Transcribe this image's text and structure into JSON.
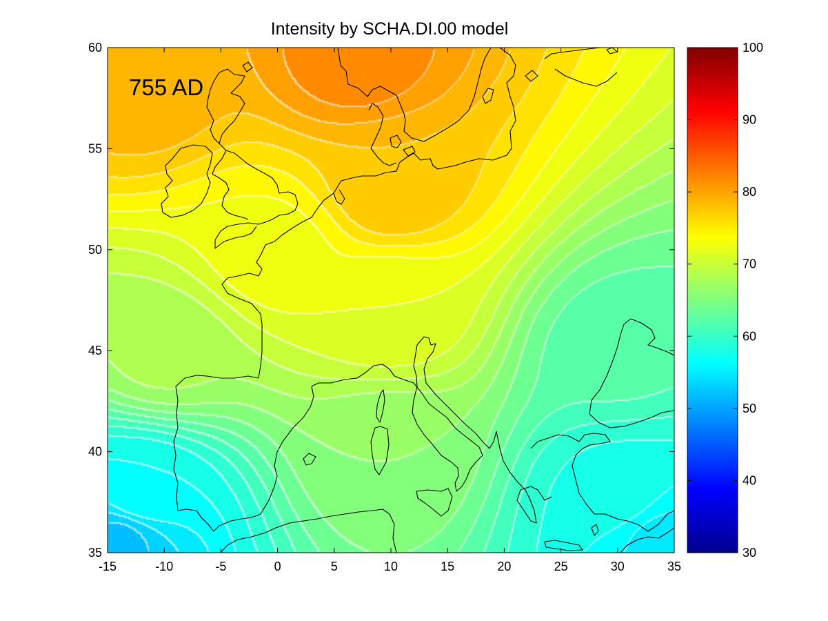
{
  "chart_data": {
    "type": "heatmap",
    "title": "Intensity by SCHA.DI.00 model",
    "annotation": "755 AD",
    "xlabel": "",
    "ylabel": "",
    "xlim": [
      -15,
      35
    ],
    "ylim": [
      35,
      60
    ],
    "x_ticks": [
      "-15",
      "-10",
      "-5",
      "0",
      "5",
      "10",
      "15",
      "20",
      "25",
      "30",
      "35"
    ],
    "y_ticks": [
      "35",
      "40",
      "45",
      "50",
      "55",
      "60"
    ],
    "colorbar": {
      "range": [
        30,
        100
      ],
      "ticks": [
        "30",
        "40",
        "50",
        "60",
        "70",
        "80",
        "90",
        "100"
      ],
      "colormap": "jet"
    },
    "field_samples": [
      {
        "lon": 7,
        "lat": 59.5,
        "value": 82
      },
      {
        "lon": -12,
        "lat": 58,
        "value": 79
      },
      {
        "lon": 10,
        "lat": 53,
        "value": 78
      },
      {
        "lon": 0,
        "lat": 50,
        "value": 73
      },
      {
        "lon": 10,
        "lat": 47,
        "value": 72
      },
      {
        "lon": -10,
        "lat": 45,
        "value": 68
      },
      {
        "lon": 10,
        "lat": 40,
        "value": 66
      },
      {
        "lon": 30,
        "lat": 45,
        "value": 62
      },
      {
        "lon": 30,
        "lat": 38,
        "value": 58
      },
      {
        "lon": -12,
        "lat": 38,
        "value": 57
      },
      {
        "lon": -14,
        "lat": 35.5,
        "value": 52
      },
      {
        "lon": 34,
        "lat": 35.5,
        "value": 55
      }
    ],
    "contour_step": 1.5,
    "grid": false
  }
}
